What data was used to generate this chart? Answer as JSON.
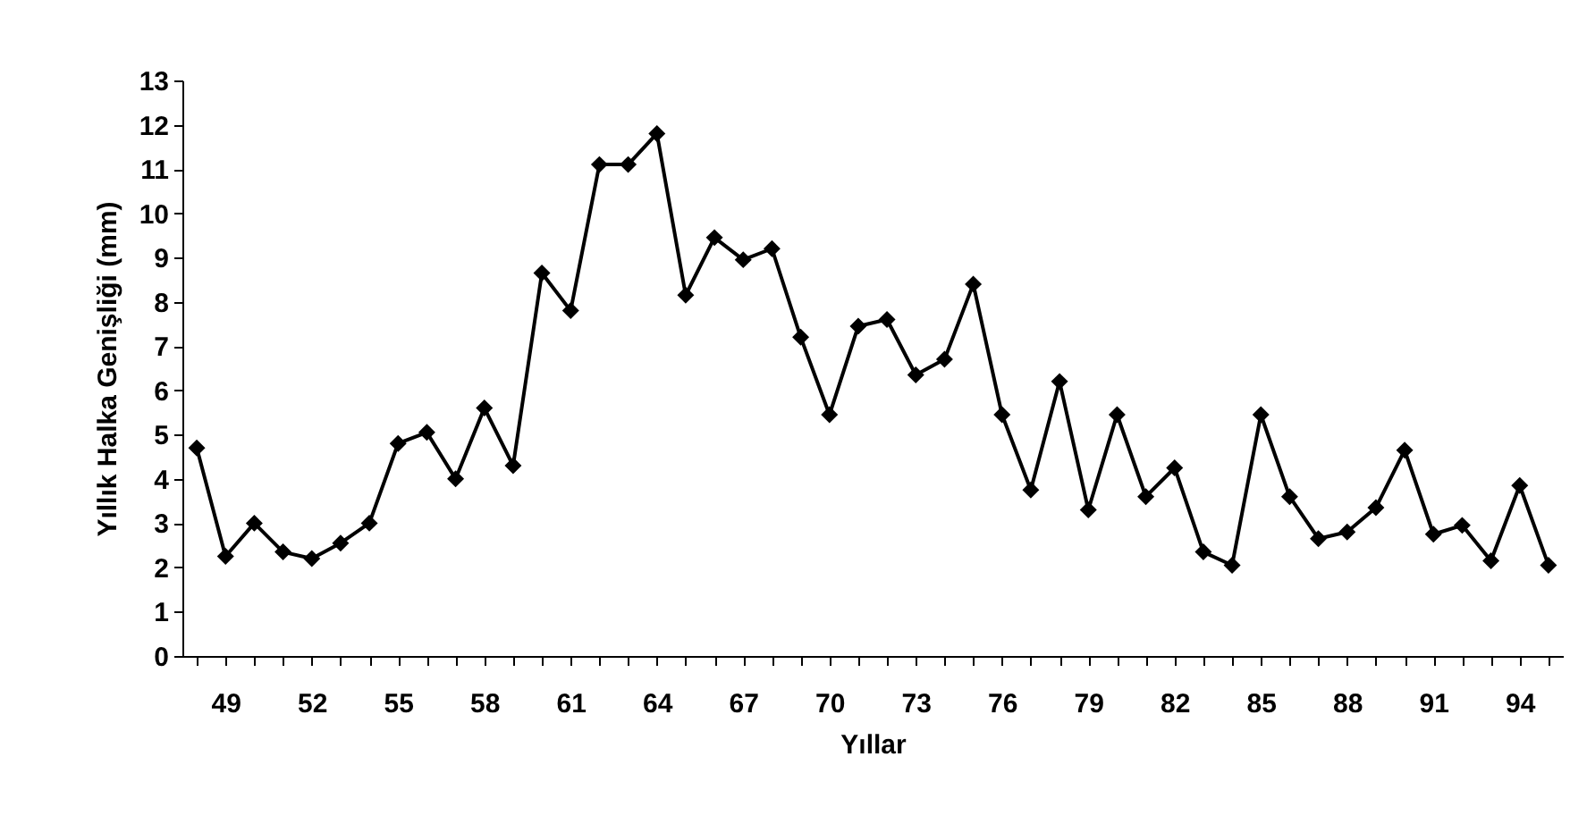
{
  "chart_data": {
    "type": "line",
    "xlabel": "Yıllar",
    "ylabel": "Yıllık Halka Genişliği (mm)",
    "categories": [
      null,
      "49",
      null,
      null,
      "52",
      null,
      null,
      "55",
      null,
      null,
      "58",
      null,
      null,
      "61",
      null,
      null,
      "64",
      null,
      null,
      "67",
      null,
      null,
      "70",
      null,
      null,
      "73",
      null,
      null,
      "76",
      null,
      null,
      "79",
      null,
      null,
      "82",
      null,
      null,
      "85",
      null,
      null,
      "88",
      null,
      null,
      "91",
      null,
      null,
      "94",
      null
    ],
    "series": [
      {
        "color": "#000000",
        "values": [
          4.7,
          2.25,
          3.0,
          2.35,
          2.2,
          2.55,
          3.0,
          4.8,
          5.05,
          4.0,
          5.6,
          4.3,
          8.65,
          7.8,
          11.1,
          11.1,
          11.8,
          8.15,
          9.45,
          8.95,
          9.2,
          7.2,
          5.45,
          7.45,
          7.6,
          6.35,
          6.7,
          8.4,
          5.45,
          3.75,
          6.2,
          3.3,
          5.45,
          3.6,
          4.25,
          2.35,
          2.05,
          5.45,
          3.6,
          2.65,
          2.8,
          3.35,
          4.65,
          2.75,
          2.95,
          2.15,
          3.85,
          2.05
        ]
      }
    ],
    "ylim": [
      0,
      13
    ],
    "yticks": [
      0,
      1,
      2,
      3,
      4,
      5,
      6,
      7,
      8,
      9,
      10,
      11,
      12,
      13
    ],
    "grid": false,
    "marker": "diamond",
    "line_style": "solid"
  }
}
